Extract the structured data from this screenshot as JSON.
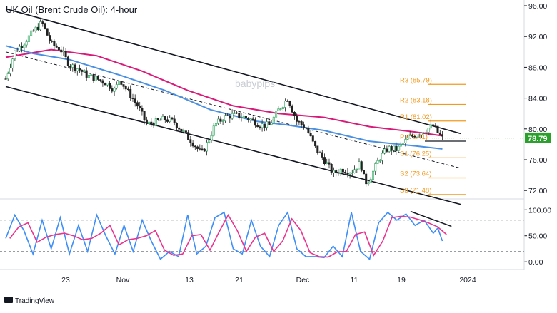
{
  "chart_data": {
    "type": "candlestick",
    "title": "UK Oil (Brent Crude Oil): 4-hour",
    "watermark": "babypips",
    "brand": "TradingView",
    "price_axis": {
      "ylim": [
        71.0,
        96.0
      ],
      "ticks": [
        "96.00",
        "92.00",
        "88.00",
        "84.00",
        "80.00",
        "76.00",
        "72.00"
      ]
    },
    "x_labels": [
      "23",
      "Nov",
      "13",
      "21",
      "Dec",
      "11",
      "19",
      "2024"
    ],
    "current_price": {
      "value": 78.79,
      "label": "78.79",
      "color": "#2ca02c"
    },
    "pivots": [
      {
        "name": "R3",
        "label": "R3 (85.79)",
        "value": 85.79
      },
      {
        "name": "R2",
        "label": "R2 (83.18)",
        "value": 83.18
      },
      {
        "name": "R1",
        "label": "R1 (81.02)",
        "value": 81.02
      },
      {
        "name": "P",
        "label": "P (78.41)",
        "value": 78.41
      },
      {
        "name": "S1",
        "label": "S1 (76.25)",
        "value": 76.25
      },
      {
        "name": "S2",
        "label": "S2 (73.64)",
        "value": 73.64
      },
      {
        "name": "S3",
        "label": "S3 (71.48)",
        "value": 71.48
      }
    ],
    "pivot_color": "#f39a1e",
    "channel": {
      "upper": [
        [
          0,
          95.6
        ],
        [
          100,
          79.4
        ]
      ],
      "middle": [
        [
          0,
          90.0
        ],
        [
          100,
          74.9
        ]
      ],
      "lower": [
        [
          0,
          85.5
        ],
        [
          100,
          70.2
        ]
      ]
    },
    "price_series": [
      [
        0,
        86.5
      ],
      [
        2,
        90.0
      ],
      [
        4,
        91.2
      ],
      [
        6,
        92.6
      ],
      [
        8,
        93.8
      ],
      [
        10,
        91.0
      ],
      [
        12,
        90.4
      ],
      [
        14,
        88.3
      ],
      [
        16,
        87.8
      ],
      [
        18,
        86.9
      ],
      [
        20,
        86.5
      ],
      [
        22,
        86.0
      ],
      [
        24,
        85.0
      ],
      [
        25,
        86.5
      ],
      [
        27,
        84.7
      ],
      [
        29,
        83.0
      ],
      [
        31,
        80.6
      ],
      [
        33,
        80.9
      ],
      [
        35,
        81.3
      ],
      [
        37,
        80.9
      ],
      [
        39,
        79.6
      ],
      [
        41,
        78.3
      ],
      [
        43,
        76.8
      ],
      [
        44,
        77.8
      ],
      [
        46,
        80.5
      ],
      [
        48,
        81.5
      ],
      [
        50,
        81.8
      ],
      [
        52,
        81.6
      ],
      [
        54,
        81.2
      ],
      [
        56,
        80.5
      ],
      [
        58,
        80.5
      ],
      [
        60,
        82.5
      ],
      [
        62,
        84.0
      ],
      [
        64,
        81.0
      ],
      [
        66,
        80.2
      ],
      [
        68,
        77.6
      ],
      [
        70,
        76.0
      ],
      [
        72,
        74.2
      ],
      [
        74,
        74.8
      ],
      [
        76,
        74.4
      ],
      [
        78,
        75.6
      ],
      [
        79,
        73.0
      ],
      [
        80,
        73.5
      ],
      [
        82,
        76.0
      ],
      [
        84,
        77.5
      ],
      [
        86,
        77.3
      ],
      [
        88,
        78.5
      ],
      [
        90,
        79.3
      ],
      [
        92,
        79.8
      ],
      [
        94,
        80.4
      ],
      [
        95,
        79.5
      ],
      [
        96,
        78.79
      ]
    ],
    "ma_pink": [
      [
        0,
        89.3
      ],
      [
        10,
        90.3
      ],
      [
        20,
        89.5
      ],
      [
        30,
        87.5
      ],
      [
        40,
        85.0
      ],
      [
        50,
        83.0
      ],
      [
        60,
        82.0
      ],
      [
        70,
        81.5
      ],
      [
        80,
        80.3
      ],
      [
        90,
        79.6
      ],
      [
        96,
        79.1
      ]
    ],
    "ma_blue": [
      [
        0,
        90.8
      ],
      [
        6,
        89.8
      ],
      [
        14,
        89.0
      ],
      [
        25,
        87.0
      ],
      [
        35,
        85.0
      ],
      [
        45,
        82.5
      ],
      [
        55,
        81.0
      ],
      [
        62,
        80.5
      ],
      [
        70,
        79.8
      ],
      [
        80,
        78.4
      ],
      [
        90,
        77.8
      ],
      [
        96,
        77.4
      ]
    ],
    "stochastic": {
      "ylim": [
        -8,
        110
      ],
      "ticks": [
        "100.00",
        "50.00",
        "0.00"
      ],
      "levels": [
        80,
        20
      ],
      "k_color": "#3e8ef7",
      "d_color": "#e8338f",
      "k": [
        [
          0,
          45
        ],
        [
          2,
          90
        ],
        [
          4,
          60
        ],
        [
          6,
          15
        ],
        [
          8,
          80
        ],
        [
          10,
          25
        ],
        [
          12,
          85
        ],
        [
          14,
          15
        ],
        [
          16,
          70
        ],
        [
          18,
          20
        ],
        [
          20,
          90
        ],
        [
          22,
          50
        ],
        [
          24,
          15
        ],
        [
          26,
          70
        ],
        [
          28,
          20
        ],
        [
          30,
          80
        ],
        [
          32,
          40
        ],
        [
          34,
          5
        ],
        [
          36,
          20
        ],
        [
          38,
          10
        ],
        [
          40,
          90
        ],
        [
          42,
          15
        ],
        [
          44,
          30
        ],
        [
          46,
          85
        ],
        [
          48,
          95
        ],
        [
          50,
          25
        ],
        [
          52,
          15
        ],
        [
          54,
          80
        ],
        [
          56,
          30
        ],
        [
          58,
          10
        ],
        [
          60,
          70
        ],
        [
          62,
          95
        ],
        [
          64,
          25
        ],
        [
          66,
          10
        ],
        [
          68,
          10
        ],
        [
          70,
          8
        ],
        [
          72,
          30
        ],
        [
          74,
          10
        ],
        [
          76,
          95
        ],
        [
          78,
          20
        ],
        [
          80,
          5
        ],
        [
          82,
          75
        ],
        [
          84,
          95
        ],
        [
          86,
          80
        ],
        [
          88,
          92
        ],
        [
          90,
          70
        ],
        [
          92,
          80
        ],
        [
          94,
          55
        ],
        [
          95,
          65
        ],
        [
          96,
          40
        ]
      ],
      "trendline": [
        [
          89,
          97
        ],
        [
          98,
          68
        ]
      ]
    }
  }
}
